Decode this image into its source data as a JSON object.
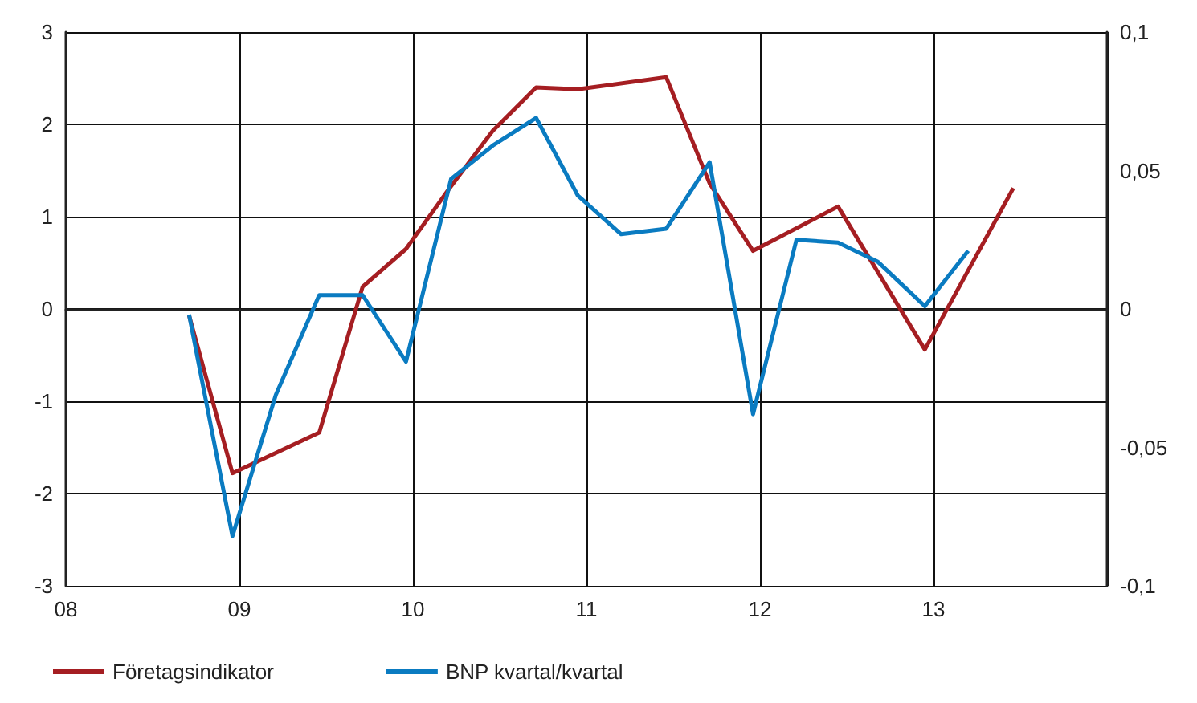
{
  "chart_data": {
    "type": "line",
    "xlim": [
      2008,
      2014
    ],
    "xticks": [
      {
        "value": 2008,
        "label": "08"
      },
      {
        "value": 2009,
        "label": "09"
      },
      {
        "value": 2010,
        "label": "10"
      },
      {
        "value": 2011,
        "label": "11"
      },
      {
        "value": 2012,
        "label": "12"
      },
      {
        "value": 2013,
        "label": "13"
      },
      {
        "value": 2014,
        "label": null
      }
    ],
    "ylim": [
      -3,
      3
    ],
    "yticks": [
      -3,
      -2,
      -1,
      0,
      1,
      2,
      3
    ],
    "y2lim": [
      -0.1,
      0.1
    ],
    "y2ticks": [
      {
        "value": -0.1,
        "label": "-0,1"
      },
      {
        "value": -0.05,
        "label": "-0,05"
      },
      {
        "value": 0,
        "label": "0"
      },
      {
        "value": 0.05,
        "label": "0,05"
      },
      {
        "value": 0.1,
        "label": "0,1"
      }
    ],
    "series": [
      {
        "name": "Företagsindikator",
        "color": "#a51e22",
        "x": [
          2008.71,
          2008.96,
          2009.46,
          2009.71,
          2009.96,
          2010.2,
          2010.46,
          2010.71,
          2010.95,
          2011.46,
          2011.71,
          2011.96,
          2012.45,
          2012.95,
          2013.46
        ],
        "values": [
          -0.07,
          -1.78,
          -1.34,
          0.24,
          0.65,
          1.28,
          1.93,
          2.4,
          2.38,
          2.51,
          1.36,
          0.63,
          1.11,
          -0.44,
          1.31
        ]
      },
      {
        "name": "BNP kvartal/kvartal",
        "color": "#0a7bc1",
        "axis": "y2",
        "x": [
          2008.71,
          2008.96,
          2009.21,
          2009.46,
          2009.71,
          2009.96,
          2010.22,
          2010.46,
          2010.71,
          2010.95,
          2011.2,
          2011.46,
          2011.71,
          2011.96,
          2012.21,
          2012.45,
          2012.68,
          2012.95,
          2013.2
        ],
        "values": [
          -0.002,
          -0.082,
          -0.031,
          0.005,
          0.005,
          -0.019,
          0.047,
          0.059,
          0.069,
          0.041,
          0.027,
          0.029,
          0.053,
          -0.038,
          0.025,
          0.024,
          0.017,
          0.001,
          0.021
        ]
      }
    ],
    "grid": true,
    "legend": "bottom left",
    "line_style": "solid",
    "marker": "none"
  }
}
